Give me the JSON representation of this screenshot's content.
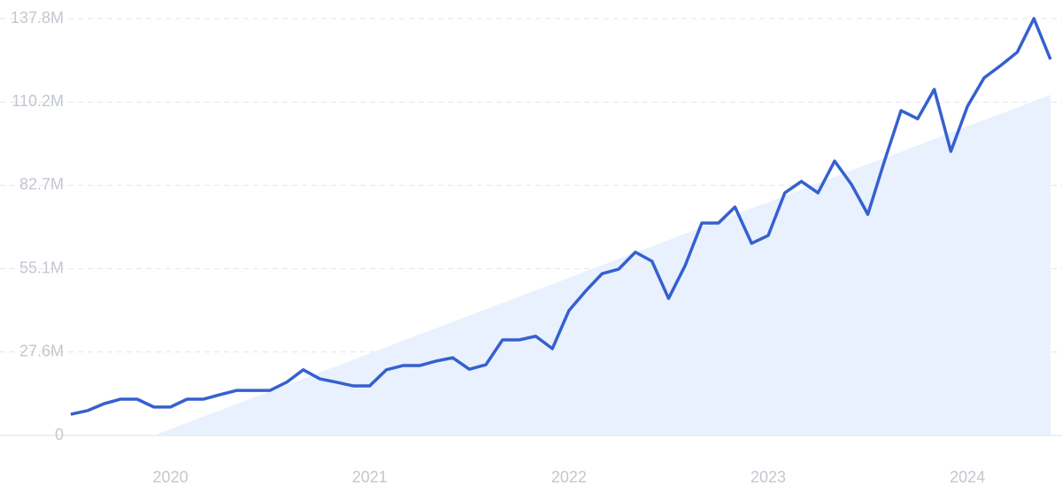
{
  "chart_data": {
    "type": "line",
    "categories": [
      null,
      null,
      null,
      null,
      null,
      null,
      "2020",
      null,
      null,
      null,
      null,
      null,
      null,
      null,
      null,
      null,
      null,
      null,
      "2021",
      null,
      null,
      null,
      null,
      null,
      null,
      null,
      null,
      null,
      null,
      null,
      "2022",
      null,
      null,
      null,
      null,
      null,
      null,
      null,
      null,
      null,
      null,
      null,
      "2023",
      null,
      null,
      null,
      null,
      null,
      null,
      null,
      null,
      null,
      null,
      null,
      "2024",
      null,
      null,
      null,
      null,
      null
    ],
    "series": [
      {
        "color": "#3560cf",
        "values": [
          7.0,
          8.2,
          10.5,
          12.0,
          12.0,
          9.4,
          9.4,
          12.0,
          12.0,
          13.5,
          14.9,
          14.9,
          14.9,
          17.6,
          21.7,
          18.7,
          17.6,
          16.4,
          16.4,
          21.7,
          23.1,
          23.1,
          24.6,
          25.7,
          21.9,
          23.4,
          31.6,
          31.6,
          32.8,
          28.7,
          41.3,
          47.7,
          53.5,
          55.0,
          60.6,
          57.6,
          45.3,
          56.2,
          70.2,
          70.2,
          75.5,
          63.5,
          66.1,
          80.2,
          84.0,
          80.2,
          90.7,
          83.1,
          73.1,
          90.7,
          107.4,
          104.7,
          114.4,
          93.9,
          108.8,
          118.2,
          122.3,
          126.7,
          137.8,
          124.3
        ]
      },
      {
        "color": "#e8f1fd",
        "values": [
          null,
          null,
          null,
          null,
          null,
          0,
          2.1,
          4.2,
          6.3,
          8.3,
          10.4,
          12.5,
          14.6,
          16.7,
          18.8,
          20.9,
          22.9,
          25.0,
          27.1,
          29.2,
          31.3,
          33.4,
          35.4,
          37.5,
          39.6,
          41.7,
          43.8,
          45.9,
          48.0,
          50.0,
          52.1,
          54.2,
          56.3,
          58.4,
          60.5,
          62.5,
          64.6,
          66.7,
          68.8,
          70.9,
          73.0,
          75.1,
          77.1,
          79.2,
          81.3,
          83.4,
          85.5,
          87.6,
          89.7,
          91.7,
          93.8,
          95.9,
          98.0,
          100.1,
          102.2,
          104.3,
          106.3,
          108.4,
          110.5,
          112.6
        ]
      }
    ],
    "ylim": [
      0,
      137.8
    ],
    "yticks": [
      0,
      {
        "value": 27.6,
        "label": "27.6M"
      },
      {
        "value": 55.1,
        "label": "55.1M"
      },
      {
        "value": 82.7,
        "label": "82.7M"
      },
      {
        "value": 110.2,
        "label": "110.2M"
      },
      {
        "value": 137.8,
        "label": "137.8M"
      }
    ],
    "grid": true
  }
}
